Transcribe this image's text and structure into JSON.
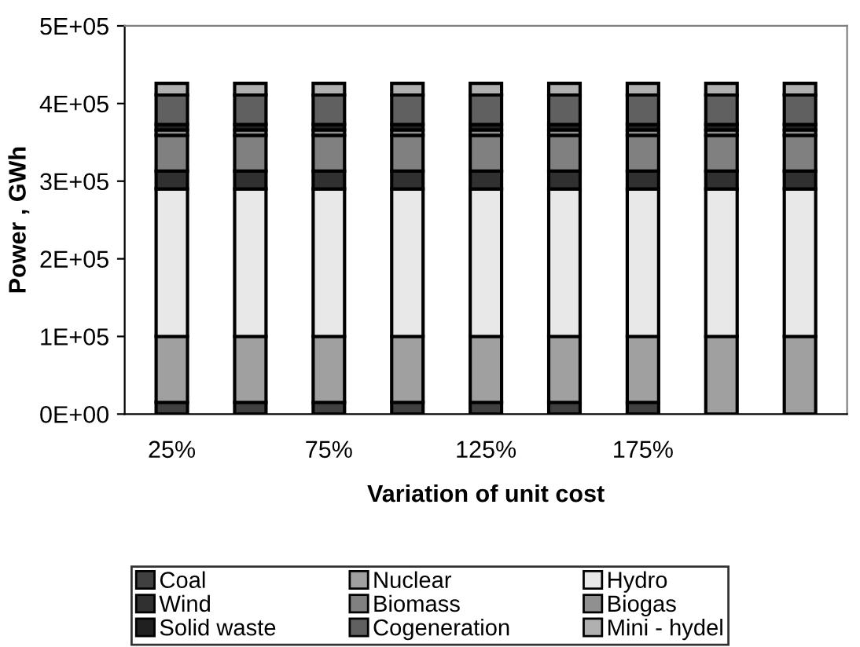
{
  "chart_data": {
    "type": "bar",
    "stacked": true,
    "xlabel": "Variation of unit cost",
    "ylabel": "Power , GWh",
    "categories": [
      "25%",
      null,
      "75%",
      null,
      "125%",
      null,
      "175%",
      null,
      null
    ],
    "series": [
      {
        "name": "Coal",
        "color": "#404040",
        "values": [
          15000,
          15000,
          15000,
          15000,
          15000,
          15000,
          15000,
          0,
          0
        ]
      },
      {
        "name": "Nuclear",
        "color": "#a0a0a0",
        "values": [
          85000,
          85000,
          85000,
          85000,
          85000,
          85000,
          85000,
          100000,
          100000
        ]
      },
      {
        "name": "Hydro",
        "color": "#e8e8e8",
        "values": [
          190000,
          190000,
          190000,
          190000,
          190000,
          190000,
          190000,
          190000,
          190000
        ]
      },
      {
        "name": "Wind",
        "color": "#303030",
        "values": [
          23000,
          23000,
          23000,
          23000,
          23000,
          23000,
          23000,
          23000,
          23000
        ]
      },
      {
        "name": "Biomass",
        "color": "#808080",
        "values": [
          46000,
          46000,
          46000,
          46000,
          46000,
          46000,
          46000,
          46000,
          46000
        ]
      },
      {
        "name": "Biogas",
        "color": "#909090",
        "values": [
          7000,
          7000,
          7000,
          7000,
          7000,
          7000,
          7000,
          7000,
          7000
        ]
      },
      {
        "name": "Solid waste",
        "color": "#202020",
        "values": [
          7000,
          7000,
          7000,
          7000,
          7000,
          7000,
          7000,
          7000,
          7000
        ]
      },
      {
        "name": "Cogeneration",
        "color": "#606060",
        "values": [
          38000,
          38000,
          38000,
          38000,
          38000,
          38000,
          38000,
          38000,
          38000
        ]
      },
      {
        "name": "Mini - hydel",
        "color": "#b0b0b0",
        "values": [
          15000,
          15000,
          15000,
          15000,
          15000,
          15000,
          15000,
          15000,
          15000
        ]
      }
    ],
    "ylim": [
      0,
      500000
    ],
    "yticks": [
      {
        "value": 0,
        "label": "0E+00"
      },
      {
        "value": 100000,
        "label": "1E+05"
      },
      {
        "value": 200000,
        "label": "2E+05"
      },
      {
        "value": 300000,
        "label": "3E+05"
      },
      {
        "value": 400000,
        "label": "4E+05"
      },
      {
        "value": 500000,
        "label": "5E+05"
      }
    ],
    "grid": false,
    "legend": "bottom"
  }
}
